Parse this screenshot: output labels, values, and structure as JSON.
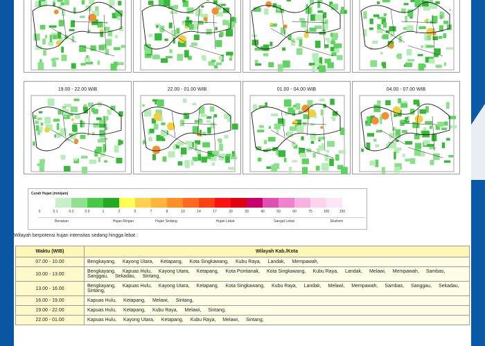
{
  "maps": [
    {
      "title": ""
    },
    {
      "title": ""
    },
    {
      "title": ""
    },
    {
      "title": ""
    },
    {
      "title": "19.00 - 22.00  WIB"
    },
    {
      "title": "22.00 - 01.00  WIB"
    },
    {
      "title": "01.00 - 04.00  WIB"
    },
    {
      "title": "04.00 - 07.00  WIB"
    }
  ],
  "legend": {
    "title": "Curah Hujan (mm/jam)",
    "ticks": [
      "0",
      "0.1",
      "0.2",
      "0.5",
      "1",
      "2",
      "5",
      "7",
      "8",
      "10",
      "14",
      "17",
      "20",
      "30",
      "40",
      "50",
      "60",
      "75",
      "100",
      "150"
    ],
    "colors": [
      "#ffffff",
      "#c8f0c8",
      "#8fe08f",
      "#47c847",
      "#23a923",
      "#ffff52",
      "#ffd24a",
      "#ffb43c",
      "#ff9028",
      "#ff6a1e",
      "#ff4010",
      "#ff1010",
      "#e00010",
      "#c8006a",
      "#e050b0",
      "#f080d0",
      "#f8b0e0",
      "#fcd4ee",
      "#fde6f6"
    ],
    "categories": [
      "Berawan",
      "Hujan Ringan",
      "Hujan Sedang",
      "Hujan Lebat",
      "Sangat Lebat",
      "Ekstrem"
    ]
  },
  "section_title": "Wilayah berpotensi hujan intensitas sedang hingga lebat :",
  "table": {
    "headers": [
      "Waktu (WIB)",
      "Wilayah Kab./Kota"
    ],
    "rows": [
      {
        "time": "07.00 - 10.00",
        "areas": [
          "Bengkayang,",
          "Kayong Utara,",
          "Ketapang,",
          "Kota Singkawang,",
          "Kubu Raya,",
          "Landak,",
          "Mempawah,"
        ]
      },
      {
        "time": "10.00 - 13.00",
        "areas": [
          "Bengkayang,",
          "Kapuas Hulu,",
          "Kayong Utara,",
          "Ketapang,",
          "Kota Pontianak,",
          "Kota Singkawang,",
          "Kubu Raya,",
          "Landak,",
          "Melawi,",
          "Mempawah,",
          "Sambas,",
          "Sanggau,",
          "Sekadau,",
          "Sintang,"
        ]
      },
      {
        "time": "13.00 - 16.00",
        "areas": [
          "Bengkayang,",
          "Kapuas Hulu,",
          "Kayong Utara,",
          "Ketapang,",
          "Kota Singkawang,",
          "Kubu Raya,",
          "Landak,",
          "Melawi,",
          "Mempawah,",
          "Sambas,",
          "Sanggau,",
          "Sekadau,",
          "Sintang,"
        ]
      },
      {
        "time": "16.00 - 19.00",
        "areas": [
          "Kapuas Hulu,",
          "Ketapang,",
          "Melawi,",
          "Sintang,"
        ]
      },
      {
        "time": "19.00 - 22.00",
        "areas": [
          "Kapuas Hulu,",
          "Ketapang,",
          "Kubu Raya,",
          "Melawi,",
          "Sintang,"
        ]
      },
      {
        "time": "22.00 - 01.00",
        "areas": [
          "Kapuas Hulu,",
          "Kayong Utara,",
          "Ketapang,",
          "Kubu Raya,",
          "Melawi,",
          "Sintang,"
        ]
      }
    ]
  }
}
